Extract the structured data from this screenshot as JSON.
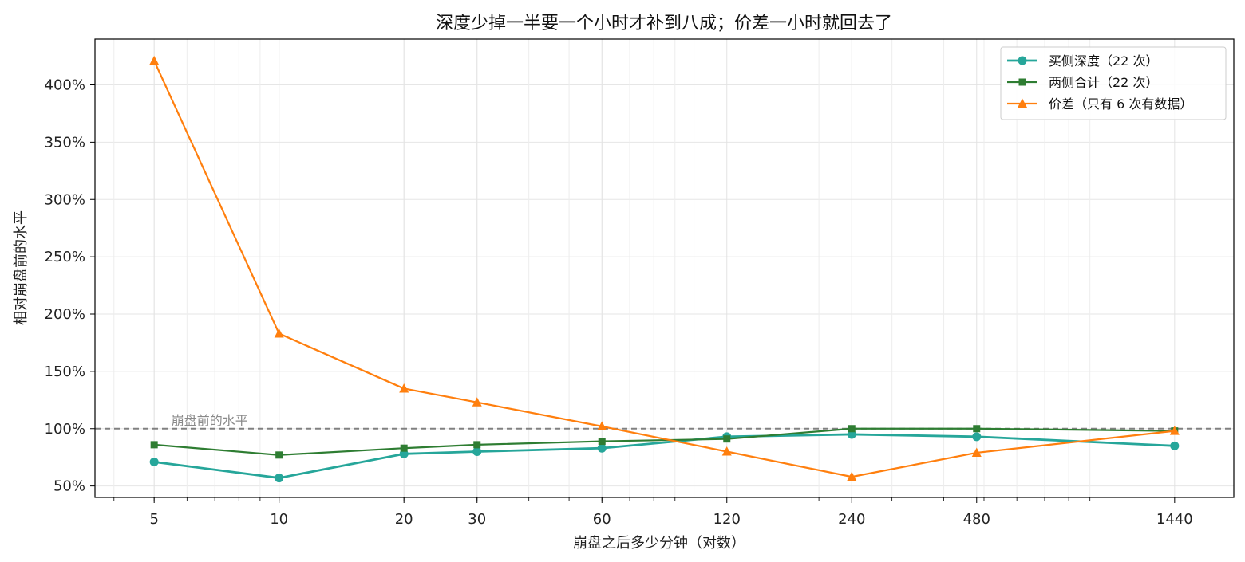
{
  "chart_data": {
    "type": "line",
    "title": "深度少掉一半要一个小时才补到八成；价差一小时就回去了",
    "xlabel": "崩盘之后多少分钟（对数）",
    "ylabel": "相对崩盘前的水平",
    "x_scale": "log",
    "x": [
      5,
      10,
      20,
      30,
      60,
      120,
      240,
      480,
      1440
    ],
    "x_tick_labels": [
      "5",
      "10",
      "20",
      "30",
      "60",
      "120",
      "240",
      "480",
      "1440"
    ],
    "xlim": [
      3.6,
      2000
    ],
    "ylim": [
      40,
      440
    ],
    "y_ticks": [
      50,
      100,
      150,
      200,
      250,
      300,
      350,
      400
    ],
    "y_tick_labels": [
      "50%",
      "100%",
      "150%",
      "200%",
      "250%",
      "300%",
      "350%",
      "400%"
    ],
    "grid": true,
    "legend_position": "top-right",
    "reference_line": {
      "value": 100,
      "label": "崩盘前的水平",
      "color": "#808080"
    },
    "series": [
      {
        "name": "买侧深度（22 次）",
        "color": "#26a69a",
        "marker": "circle",
        "values": [
          71,
          57,
          78,
          80,
          83,
          93,
          95,
          93,
          85
        ]
      },
      {
        "name": "两侧合计（22 次）",
        "color": "#2e7d32",
        "marker": "square",
        "values": [
          86,
          77,
          83,
          86,
          89,
          91,
          100,
          100,
          98
        ]
      },
      {
        "name": "价差（只有 6 次有数据）",
        "color": "#ff7f0e",
        "marker": "triangle",
        "values": [
          421,
          183,
          135,
          123,
          102,
          80,
          58,
          79,
          98
        ]
      }
    ]
  }
}
